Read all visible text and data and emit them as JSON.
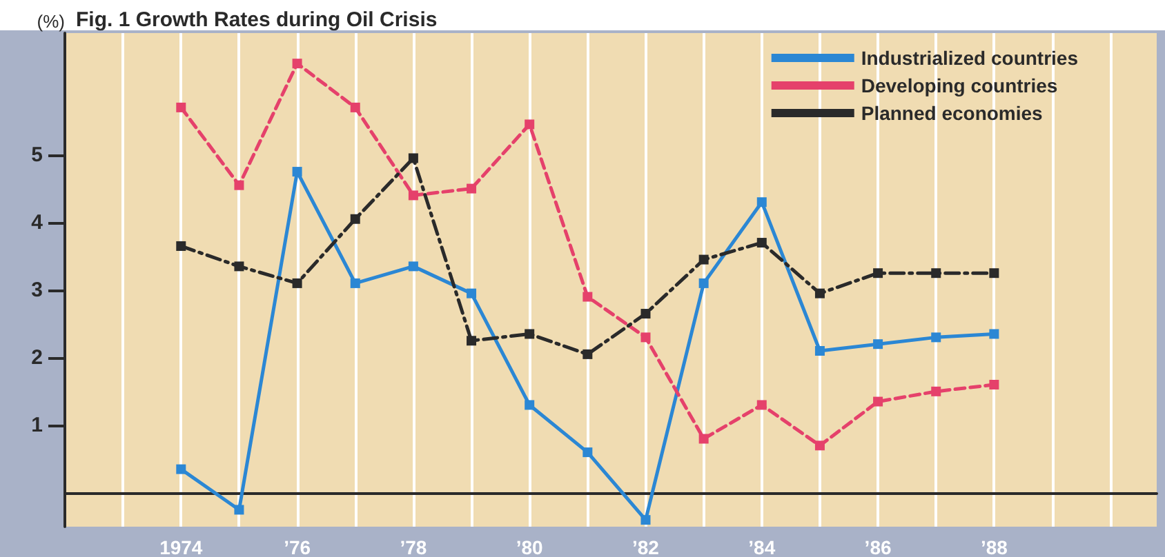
{
  "chart_data": {
    "type": "line",
    "title": "Fig. 1 Growth Rates during Oil Crisis",
    "ylabel": "(%)",
    "x": [
      1974,
      1975,
      1976,
      1977,
      1978,
      1979,
      1980,
      1981,
      1982,
      1983,
      1984,
      1985,
      1986,
      1987,
      1988
    ],
    "series": [
      {
        "name": "Industrialized countries",
        "color": "#2b87d4",
        "line_style": "solid",
        "values": [
          0.35,
          -0.25,
          4.75,
          3.1,
          3.35,
          2.95,
          1.3,
          0.6,
          -0.4,
          3.1,
          4.3,
          2.1,
          2.2,
          2.3,
          2.35
        ]
      },
      {
        "name": "Developing countries",
        "color": "#e5416b",
        "line_style": "dashed",
        "values": [
          5.7,
          4.55,
          6.35,
          5.7,
          4.4,
          4.5,
          5.45,
          2.9,
          2.3,
          0.8,
          1.3,
          0.7,
          1.35,
          1.5,
          1.6
        ]
      },
      {
        "name": "Planned economies",
        "color": "#2a2a2a",
        "line_style": "dashdot",
        "values": [
          3.65,
          3.35,
          3.1,
          4.05,
          4.95,
          2.25,
          2.35,
          2.05,
          2.65,
          3.45,
          3.7,
          2.95,
          3.25,
          3.25,
          3.25
        ]
      }
    ],
    "xlim": [
      1972,
      1990.8
    ],
    "xticks": [
      {
        "value": 1973,
        "label": null
      },
      1974,
      {
        "value": 1975,
        "label": null
      },
      {
        "value": 1976,
        "label": "’76"
      },
      {
        "value": 1977,
        "label": null
      },
      {
        "value": 1978,
        "label": "’78"
      },
      {
        "value": 1979,
        "label": null
      },
      {
        "value": 1980,
        "label": "’80"
      },
      {
        "value": 1981,
        "label": null
      },
      {
        "value": 1982,
        "label": "’82"
      },
      {
        "value": 1983,
        "label": null
      },
      {
        "value": 1984,
        "label": "’84"
      },
      {
        "value": 1985,
        "label": null
      },
      {
        "value": 1986,
        "label": "’86"
      },
      {
        "value": 1987,
        "label": null
      },
      {
        "value": 1988,
        "label": "’88"
      },
      {
        "value": 1989,
        "label": null
      },
      {
        "value": 1990,
        "label": null
      }
    ],
    "ylim": [
      -0.5,
      6.8
    ],
    "yticks": [
      1,
      2,
      3,
      4,
      5
    ],
    "grid": "x",
    "legend": "top right",
    "marker": "square"
  }
}
